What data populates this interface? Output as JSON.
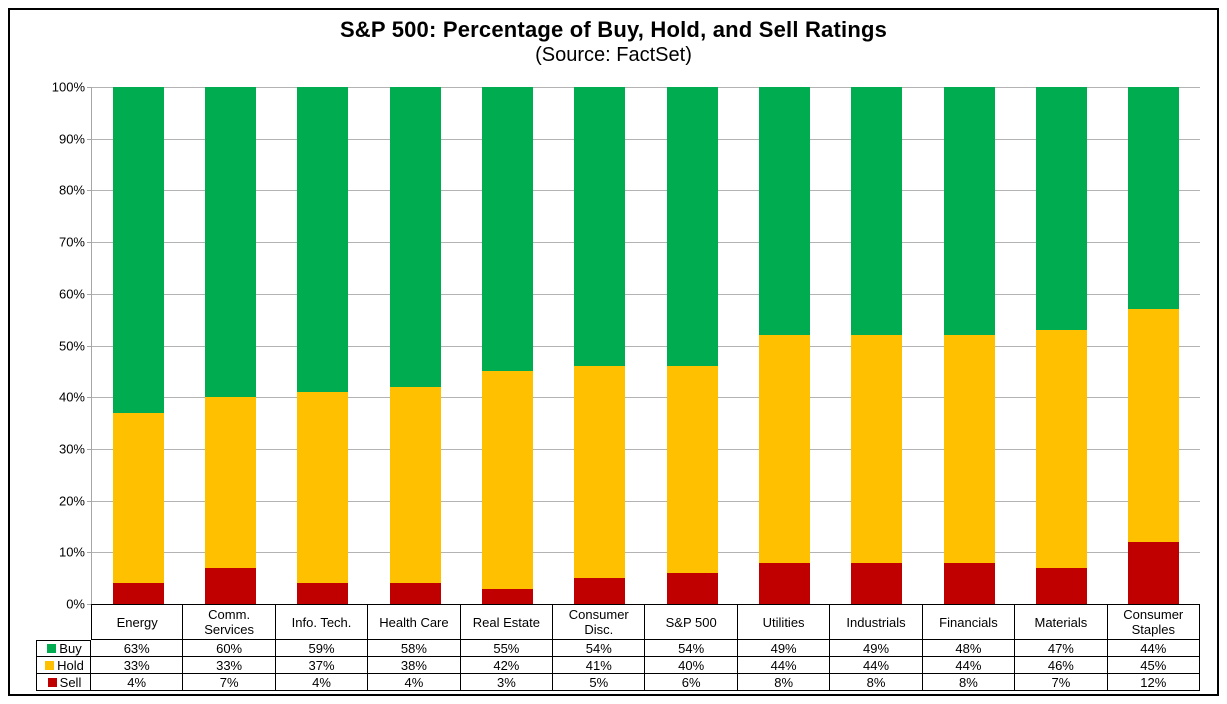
{
  "title": "S&P 500: Percentage of Buy, Hold, and Sell Ratings",
  "subtitle": "(Source: FactSet)",
  "chart_data": {
    "type": "bar",
    "stacked": true,
    "title": "S&P 500: Percentage of Buy, Hold, and Sell Ratings",
    "subtitle": "(Source: FactSet)",
    "categories": [
      "Energy",
      "Comm. Services",
      "Info. Tech.",
      "Health Care",
      "Real Estate",
      "Consumer Disc.",
      "S&P 500",
      "Utilities",
      "Industrials",
      "Financials",
      "Materials",
      "Consumer Staples"
    ],
    "series": [
      {
        "name": "Buy",
        "color": "#00ac50",
        "values": [
          63,
          60,
          59,
          58,
          55,
          54,
          54,
          49,
          49,
          48,
          47,
          44
        ]
      },
      {
        "name": "Hold",
        "color": "#ffc000",
        "values": [
          33,
          33,
          37,
          38,
          42,
          41,
          40,
          44,
          44,
          44,
          46,
          45
        ]
      },
      {
        "name": "Sell",
        "color": "#c00000",
        "values": [
          4,
          7,
          4,
          4,
          3,
          5,
          6,
          8,
          8,
          8,
          7,
          12
        ]
      }
    ],
    "value_suffix": "%",
    "y_ticks": [
      "0%",
      "10%",
      "20%",
      "30%",
      "40%",
      "50%",
      "60%",
      "70%",
      "80%",
      "90%",
      "100%"
    ],
    "ylim": [
      0,
      100
    ],
    "grid": true,
    "legend_position": "table-left",
    "colors": {
      "buy": "#00ac50",
      "hold": "#ffc000",
      "sell": "#c00000",
      "gridline": "#b3b3b3",
      "axis": "#a6a6a6",
      "table_border": "#000000"
    }
  }
}
